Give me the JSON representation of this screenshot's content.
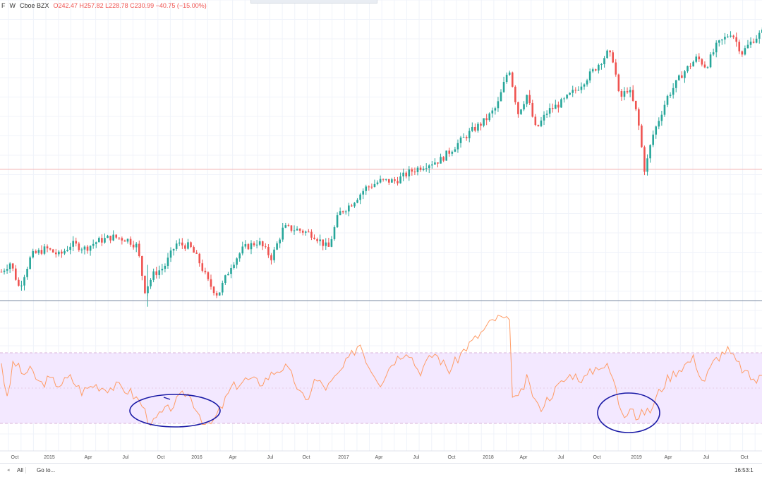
{
  "legend": {
    "symbol_suffix": "F",
    "interval": "W",
    "exchange": "Cboe BZX",
    "ohlc": "O242.47 H257.82 L228.78 C230.99 −40.75 (−15.00%)"
  },
  "bottom_bar": {
    "range_all": "All",
    "goto": "Go to...",
    "clock": "16:53:1"
  },
  "colors": {
    "up": "#26a69a",
    "down": "#ef5350",
    "oscillator": "#ff9c66",
    "band_fill": "#f3e8ff",
    "annotation": "#1a1aa6",
    "horizontal_line": "#f3b6b6"
  },
  "chart_data": [
    {
      "type": "candlestick",
      "title": "",
      "interval": "W",
      "x_ticks": [
        "Oct",
        "2015",
        "Apr",
        "Jul",
        "Oct",
        "2016",
        "Apr",
        "Jul",
        "Oct",
        "2017",
        "Apr",
        "Jul",
        "Oct",
        "2018",
        "Apr",
        "Jul",
        "Oct",
        "2019",
        "Apr",
        "Jul",
        "Oct"
      ],
      "close_path": [
        [
          2014.66,
          197
        ],
        [
          2014.72,
          201
        ],
        [
          2014.78,
          190
        ],
        [
          2014.86,
          204
        ],
        [
          2014.96,
          207
        ],
        [
          2015.05,
          204
        ],
        [
          2015.13,
          209
        ],
        [
          2015.22,
          207
        ],
        [
          2015.3,
          210
        ],
        [
          2015.4,
          212
        ],
        [
          2015.5,
          211
        ],
        [
          2015.57,
          208
        ],
        [
          2015.62,
          189
        ],
        [
          2015.68,
          196
        ],
        [
          2015.75,
          199
        ],
        [
          2015.83,
          209
        ],
        [
          2015.92,
          208
        ],
        [
          2015.98,
          202
        ],
        [
          2016.05,
          192
        ],
        [
          2016.11,
          187
        ],
        [
          2016.2,
          200
        ],
        [
          2016.28,
          207
        ],
        [
          2016.38,
          210
        ],
        [
          2016.47,
          203
        ],
        [
          2016.55,
          216
        ],
        [
          2016.65,
          215
        ],
        [
          2016.75,
          213
        ],
        [
          2016.85,
          207
        ],
        [
          2016.92,
          222
        ],
        [
          2017.0,
          226
        ],
        [
          2017.1,
          233
        ],
        [
          2017.2,
          236
        ],
        [
          2017.3,
          236
        ],
        [
          2017.4,
          240
        ],
        [
          2017.5,
          243
        ],
        [
          2017.6,
          245
        ],
        [
          2017.7,
          251
        ],
        [
          2017.8,
          257
        ],
        [
          2017.9,
          262
        ],
        [
          2017.98,
          268
        ],
        [
          2018.06,
          285
        ],
        [
          2018.12,
          265
        ],
        [
          2018.18,
          273
        ],
        [
          2018.24,
          258
        ],
        [
          2018.32,
          266
        ],
        [
          2018.42,
          270
        ],
        [
          2018.52,
          276
        ],
        [
          2018.62,
          283
        ],
        [
          2018.72,
          291
        ],
        [
          2018.76,
          288
        ],
        [
          2018.8,
          271
        ],
        [
          2018.86,
          276
        ],
        [
          2018.92,
          264
        ],
        [
          2018.97,
          240
        ],
        [
          2019.02,
          255
        ],
        [
          2019.12,
          272
        ],
        [
          2019.22,
          282
        ],
        [
          2019.32,
          289
        ],
        [
          2019.38,
          285
        ],
        [
          2019.45,
          294
        ],
        [
          2019.55,
          300
        ],
        [
          2019.62,
          291
        ],
        [
          2019.7,
          297
        ],
        [
          2019.8,
          302
        ],
        [
          2019.9,
          310
        ]
      ],
      "notable_low": [
        2015.64,
        182
      ],
      "horizontal_line": 241
    },
    {
      "type": "line",
      "title": "",
      "band": [
        30,
        70
      ],
      "ylim": [
        0,
        100
      ],
      "values": [
        [
          2014.66,
          65
        ],
        [
          2014.7,
          42
        ],
        [
          2014.74,
          66
        ],
        [
          2014.8,
          58
        ],
        [
          2014.86,
          60
        ],
        [
          2014.92,
          52
        ],
        [
          2014.98,
          55
        ],
        [
          2015.05,
          52
        ],
        [
          2015.12,
          56
        ],
        [
          2015.2,
          48
        ],
        [
          2015.28,
          52
        ],
        [
          2015.36,
          50
        ],
        [
          2015.44,
          51
        ],
        [
          2015.52,
          48
        ],
        [
          2015.6,
          41
        ],
        [
          2015.64,
          33
        ],
        [
          2015.68,
          30
        ],
        [
          2015.72,
          35
        ],
        [
          2015.78,
          38
        ],
        [
          2015.84,
          43
        ],
        [
          2015.9,
          48
        ],
        [
          2015.96,
          40
        ],
        [
          2016.0,
          33
        ],
        [
          2016.04,
          28
        ],
        [
          2016.08,
          31
        ],
        [
          2016.14,
          40
        ],
        [
          2016.2,
          50
        ],
        [
          2016.3,
          55
        ],
        [
          2016.4,
          53
        ],
        [
          2016.5,
          60
        ],
        [
          2016.56,
          62
        ],
        [
          2016.62,
          55
        ],
        [
          2016.66,
          47
        ],
        [
          2016.7,
          42
        ],
        [
          2016.76,
          55
        ],
        [
          2016.84,
          50
        ],
        [
          2016.92,
          58
        ],
        [
          2017.0,
          68
        ],
        [
          2017.06,
          76
        ],
        [
          2017.12,
          63
        ],
        [
          2017.2,
          53
        ],
        [
          2017.28,
          65
        ],
        [
          2017.38,
          72
        ],
        [
          2017.46,
          59
        ],
        [
          2017.56,
          70
        ],
        [
          2017.66,
          60
        ],
        [
          2017.76,
          72
        ],
        [
          2017.86,
          80
        ],
        [
          2017.96,
          89
        ],
        [
          2018.02,
          90
        ],
        [
          2018.04,
          86
        ],
        [
          2018.06,
          95
        ],
        [
          2018.08,
          48
        ],
        [
          2018.12,
          43
        ],
        [
          2018.18,
          55
        ],
        [
          2018.26,
          38
        ],
        [
          2018.32,
          44
        ],
        [
          2018.4,
          52
        ],
        [
          2018.48,
          58
        ],
        [
          2018.56,
          55
        ],
        [
          2018.66,
          63
        ],
        [
          2018.72,
          62
        ],
        [
          2018.76,
          55
        ],
        [
          2018.8,
          40
        ],
        [
          2018.84,
          35
        ],
        [
          2018.88,
          42
        ],
        [
          2018.92,
          31
        ],
        [
          2018.96,
          37
        ],
        [
          2019.0,
          36
        ],
        [
          2019.06,
          47
        ],
        [
          2019.12,
          55
        ],
        [
          2019.2,
          61
        ],
        [
          2019.3,
          67
        ],
        [
          2019.36,
          53
        ],
        [
          2019.44,
          66
        ],
        [
          2019.52,
          72
        ],
        [
          2019.58,
          65
        ],
        [
          2019.66,
          57
        ],
        [
          2019.72,
          54
        ],
        [
          2019.8,
          61
        ],
        [
          2019.88,
          70
        ],
        [
          2019.95,
          74
        ]
      ],
      "annotations": [
        "ellipse-2015-low",
        "ellipse-2018-low"
      ]
    }
  ]
}
